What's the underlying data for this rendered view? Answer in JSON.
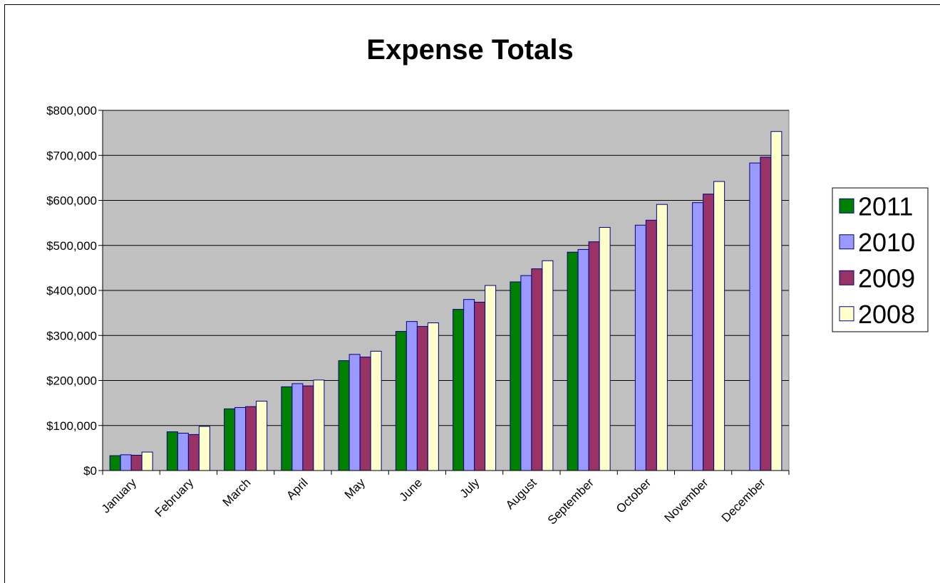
{
  "chart_data": {
    "type": "bar",
    "title": "Expense Totals",
    "xlabel": "",
    "ylabel": "",
    "ylim": [
      0,
      800000
    ],
    "yticks": [
      0,
      100000,
      200000,
      300000,
      400000,
      500000,
      600000,
      700000,
      800000
    ],
    "ytick_labels": [
      "$0",
      "$100,000",
      "$200,000",
      "$300,000",
      "$400,000",
      "$500,000",
      "$600,000",
      "$700,000",
      "$800,000"
    ],
    "grid": true,
    "legend_position": "right",
    "categories": [
      "January",
      "February",
      "March",
      "April",
      "May",
      "June",
      "July",
      "August",
      "September",
      "October",
      "November",
      "December"
    ],
    "series": [
      {
        "name": "2011",
        "color": "#008000",
        "values": [
          33000,
          86000,
          137000,
          186000,
          244000,
          309000,
          358000,
          419000,
          485000,
          null,
          null,
          null
        ]
      },
      {
        "name": "2010",
        "color": "#9999FF",
        "values": [
          35000,
          83000,
          140000,
          193000,
          258000,
          331000,
          380000,
          433000,
          491000,
          545000,
          595000,
          683000
        ]
      },
      {
        "name": "2009",
        "color": "#993366",
        "values": [
          34000,
          80000,
          142000,
          188000,
          252000,
          320000,
          374000,
          448000,
          508000,
          556000,
          614000,
          696000
        ]
      },
      {
        "name": "2008",
        "color": "#FFFFCC",
        "values": [
          41000,
          98000,
          154000,
          201000,
          265000,
          328000,
          411000,
          466000,
          540000,
          591000,
          642000,
          753000
        ]
      }
    ]
  },
  "colors": {
    "plot_background": "#C0C0C0",
    "gridline": "#000000"
  }
}
